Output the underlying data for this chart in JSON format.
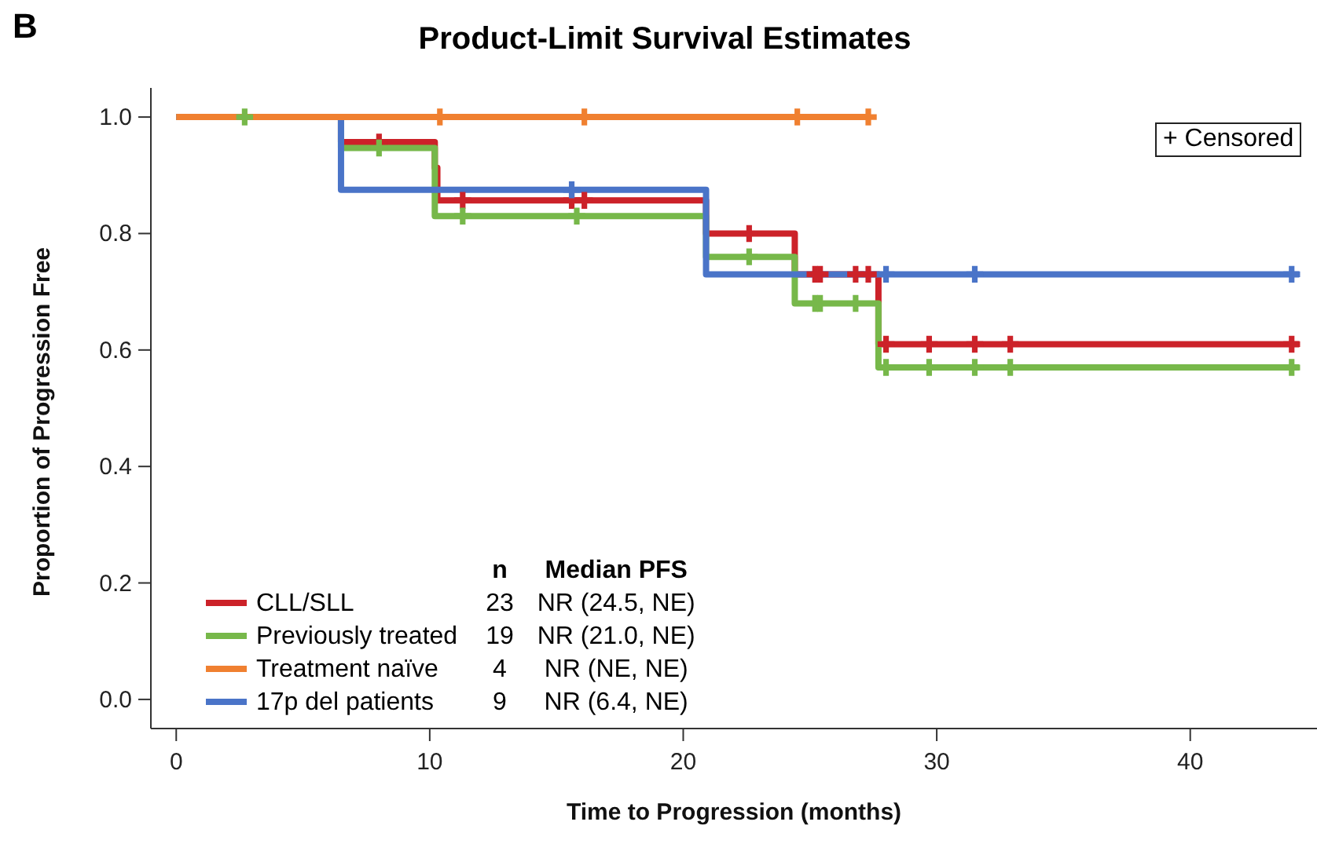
{
  "chart_data": {
    "type": "step",
    "title": "Product-Limit Survival Estimates",
    "xlabel": "Time to Progression (months)",
    "ylabel": "Proportion of Progression Free",
    "xlim": [
      -1,
      45
    ],
    "xticks": [
      0,
      10,
      20,
      30,
      40
    ],
    "ylim": [
      -0.05,
      1.05
    ],
    "yticks": [
      {
        "value": 0,
        "label": "0.0"
      },
      0.2,
      0.4,
      0.6,
      0.8,
      {
        "value": 1,
        "label": "1.0"
      }
    ],
    "grid": false,
    "legend": "bottom left",
    "line_style": "solid",
    "series": [
      {
        "name": "CLL/SLL",
        "color": "#cc2229",
        "x": [
          0,
          6.5,
          10.2,
          10.3,
          20.9,
          24.4,
          27.7,
          44.3
        ],
        "values": [
          1,
          0.957,
          0.913,
          0.857,
          0.8,
          0.73,
          0.61,
          0.61
        ]
      },
      {
        "name": "Previously treated",
        "color": "#77b84a",
        "x": [
          0,
          6.5,
          10.2,
          20.9,
          24.4,
          27.7,
          44.3
        ],
        "values": [
          1,
          0.947,
          0.83,
          0.76,
          0.68,
          0.57,
          0.57
        ]
      },
      {
        "name": "Treatment naïve",
        "color": "#f08030",
        "x": [
          0,
          27.3
        ],
        "values": [
          1,
          1
        ]
      },
      {
        "name": "17p del patients",
        "color": "#4a74c8",
        "x": [
          0,
          6.5,
          20.9,
          44.3
        ],
        "values": [
          1,
          0.875,
          0.73,
          0.73
        ]
      },
      {
        "type": "scatter",
        "marker": "cross",
        "color": "#cc2229",
        "x": [
          8.0,
          11.3,
          15.6,
          16.1,
          22.6,
          25.2,
          25.4,
          26.8,
          27.3,
          28.0,
          29.7,
          31.5,
          32.9,
          44.0
        ],
        "values": [
          0.957,
          0.857,
          0.857,
          0.857,
          0.8,
          0.73,
          0.73,
          0.73,
          0.73,
          0.61,
          0.61,
          0.61,
          0.61,
          0.61
        ]
      },
      {
        "type": "scatter",
        "marker": "cross",
        "color": "#77b84a",
        "x": [
          2.7,
          8.0,
          11.3,
          15.8,
          22.6,
          25.2,
          25.4,
          26.8,
          28.0,
          29.7,
          31.5,
          32.9,
          44.0
        ],
        "values": [
          1,
          0.947,
          0.83,
          0.83,
          0.76,
          0.68,
          0.68,
          0.68,
          0.57,
          0.57,
          0.57,
          0.57,
          0.57
        ]
      },
      {
        "type": "scatter",
        "marker": "cross",
        "color": "#f08030",
        "x": [
          10.4,
          16.1,
          24.5,
          27.3
        ],
        "values": [
          1,
          1,
          1,
          1
        ]
      },
      {
        "type": "scatter",
        "marker": "cross",
        "color": "#4a74c8",
        "x": [
          15.6,
          28.0,
          31.5,
          44.0
        ],
        "values": [
          0.875,
          0.73,
          0.73,
          0.73
        ]
      }
    ],
    "annotations": [
      "B",
      "+ Censored",
      "n",
      "Median PFS",
      "23",
      "NR (24.5, NE)",
      "19",
      "NR (21.0, NE)",
      "4",
      "NR (NE, NE)",
      "9",
      "NR (6.4, NE)"
    ]
  }
}
